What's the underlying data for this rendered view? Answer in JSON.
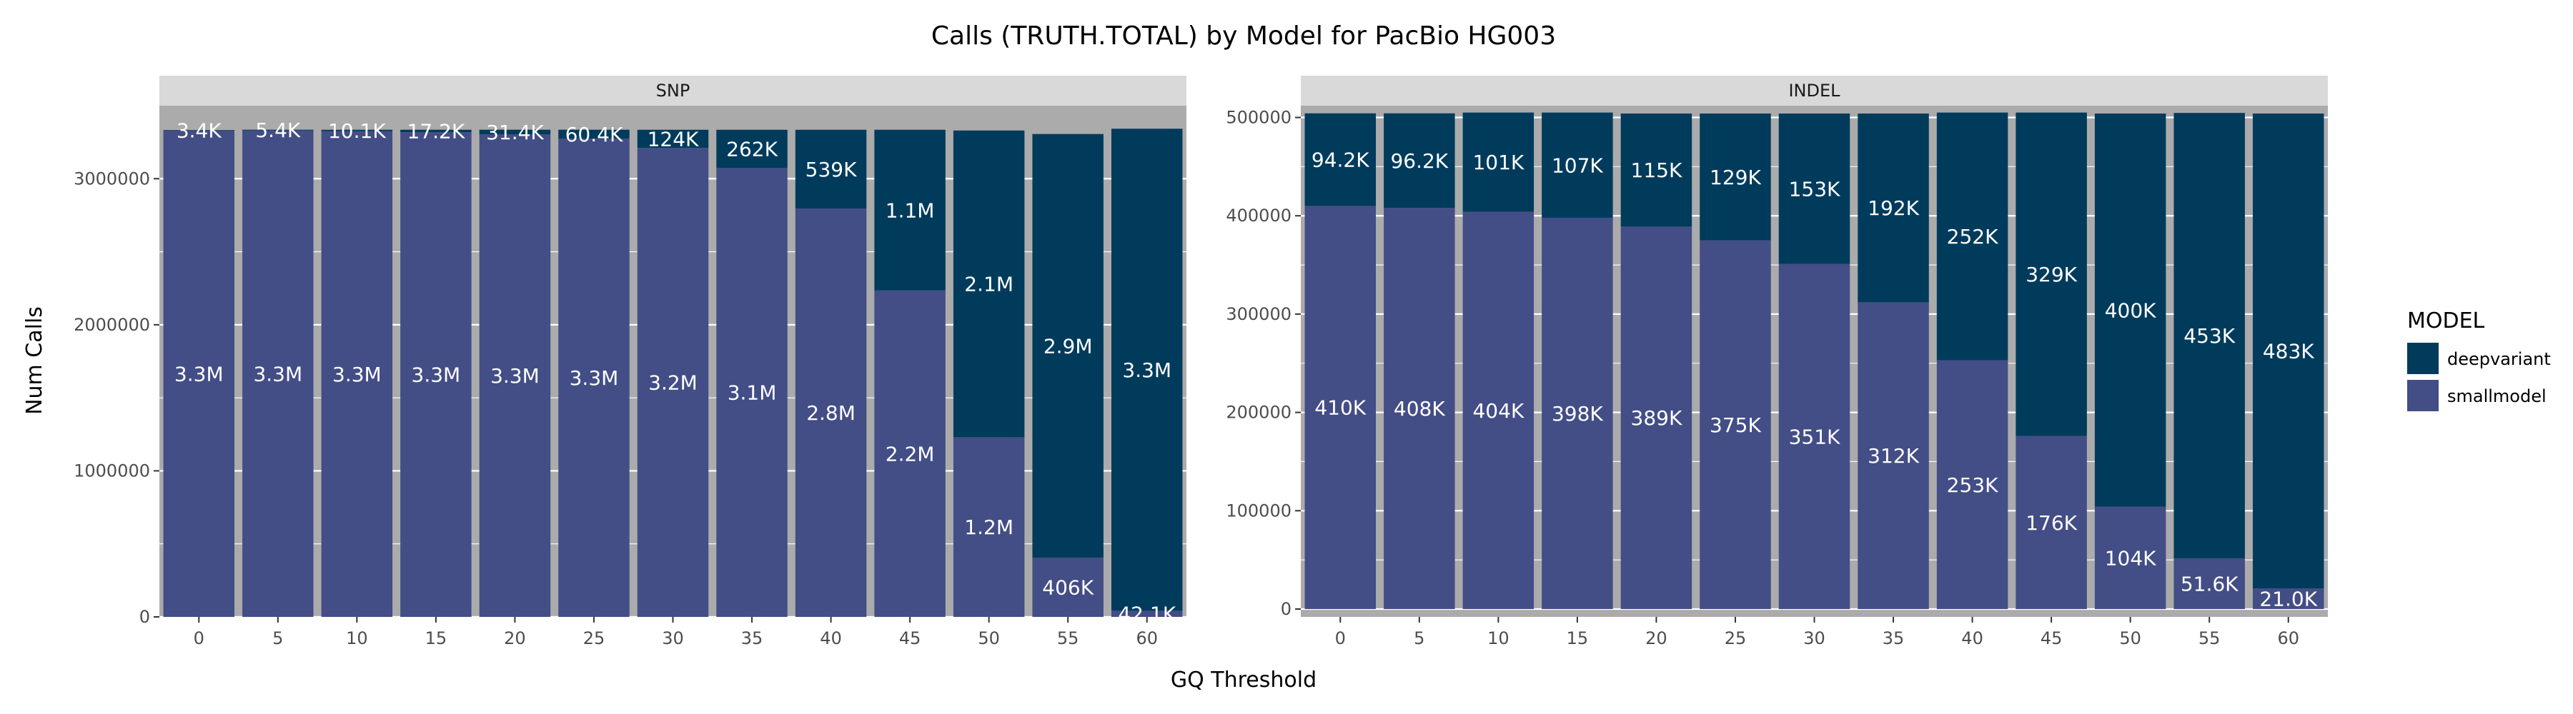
{
  "chart_data": {
    "type": "bar",
    "stacked": true,
    "title": "Calls (TRUTH.TOTAL) by Model for PacBio HG003",
    "xlabel": "GQ Threshold",
    "ylabel": "Num Calls",
    "legend": {
      "title": "MODEL",
      "placement": "right",
      "entries": [
        {
          "name": "deepvariant",
          "color": "#003b5c"
        },
        {
          "name": "smallmodel",
          "color": "#434d86"
        }
      ]
    },
    "panels": [
      {
        "name": "SNP",
        "categories": [
          "0",
          "5",
          "10",
          "15",
          "20",
          "25",
          "30",
          "35",
          "40",
          "45",
          "50",
          "55",
          "60"
        ],
        "ylim": [
          0,
          3500000
        ],
        "yticks": [
          0,
          1000000,
          2000000,
          3000000
        ],
        "ytick_labels": [
          "0",
          "1000000",
          "2000000",
          "3000000"
        ],
        "series": [
          {
            "name": "smallmodel",
            "values": [
              3330000,
              3330000,
              3325000,
              3318000,
              3304000,
              3275000,
              3211000,
              3073000,
              2796000,
              2235000,
              1230000,
              406000,
              42100
            ],
            "labels": [
              "3.3M",
              "3.3M",
              "3.3M",
              "3.3M",
              "3.3M",
              "3.3M",
              "3.2M",
              "3.1M",
              "2.8M",
              "2.2M",
              "1.2M",
              "406K",
              "42.1K"
            ]
          },
          {
            "name": "deepvariant",
            "values": [
              3400,
              5400,
              10100,
              17200,
              31400,
              60400,
              124000,
              262000,
              539000,
              1100000,
              2100000,
              2900000,
              3300000
            ],
            "labels": [
              "3.4K",
              "5.4K",
              "10.1K",
              "17.2K",
              "31.4K",
              "60.4K",
              "124K",
              "262K",
              "539K",
              "1.1M",
              "2.1M",
              "2.9M",
              "3.3M"
            ]
          }
        ]
      },
      {
        "name": "INDEL",
        "categories": [
          "0",
          "5",
          "10",
          "15",
          "20",
          "25",
          "30",
          "35",
          "40",
          "45",
          "50",
          "55",
          "60"
        ],
        "ylim": [
          -8000,
          512000
        ],
        "yticks": [
          0,
          100000,
          200000,
          300000,
          400000,
          500000
        ],
        "ytick_labels": [
          "0",
          "100000",
          "200000",
          "300000",
          "400000",
          "500000"
        ],
        "series": [
          {
            "name": "smallmodel",
            "values": [
              410000,
              408000,
              404000,
              398000,
              389000,
              375000,
              351000,
              312000,
              253000,
              176000,
              104000,
              51600,
              21000
            ],
            "labels": [
              "410K",
              "408K",
              "404K",
              "398K",
              "389K",
              "375K",
              "351K",
              "312K",
              "253K",
              "176K",
              "104K",
              "51.6K",
              "21.0K"
            ]
          },
          {
            "name": "deepvariant",
            "values": [
              94200,
              96200,
              101000,
              107000,
              115000,
              129000,
              153000,
              192000,
              252000,
              329000,
              400000,
              453000,
              483000
            ],
            "labels": [
              "94.2K",
              "96.2K",
              "101K",
              "107K",
              "115K",
              "129K",
              "153K",
              "192K",
              "252K",
              "329K",
              "400K",
              "453K",
              "483K"
            ]
          }
        ]
      }
    ],
    "grid": true
  }
}
